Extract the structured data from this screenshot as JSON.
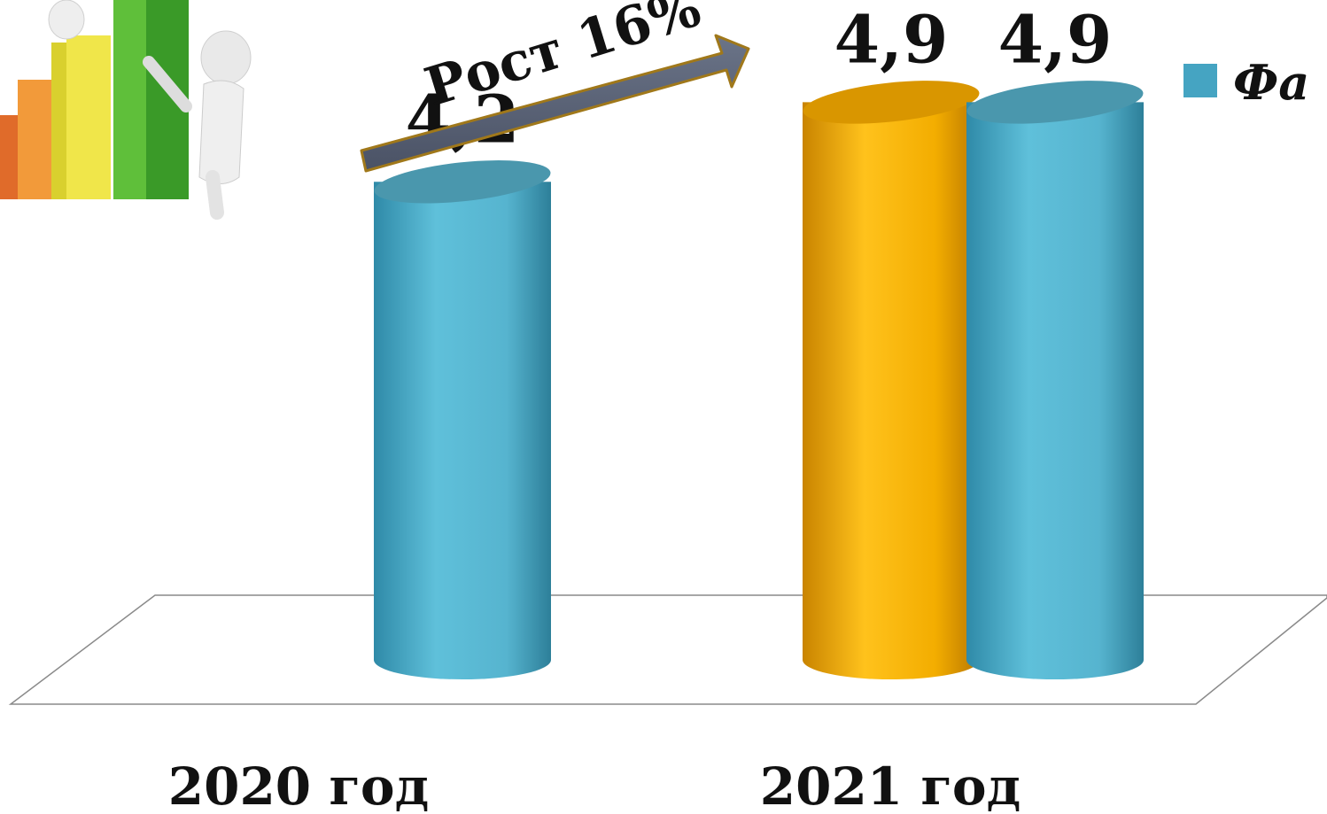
{
  "chart_data": {
    "type": "bar",
    "style": "3d-cylinder",
    "categories": [
      "2020 год",
      "2021 год"
    ],
    "series": [
      {
        "color": "#F2A900",
        "values": [
          null,
          4.9
        ]
      },
      {
        "name": "Фа",
        "color": "#45A4C2",
        "values": [
          4.2,
          4.9
        ]
      }
    ],
    "data_labels": [
      {
        "category": "2020 год",
        "text": "4,2"
      },
      {
        "category": "2021 год",
        "text": "4,9"
      },
      {
        "category": "2021 год",
        "text": "4,9"
      }
    ],
    "annotation": {
      "text": "Рост 16%",
      "arrow": true
    },
    "legend": {
      "placement": "top-right",
      "label": "Фа"
    },
    "grid": false,
    "ylim": [
      0,
      5.2
    ]
  },
  "decorations": {
    "clipart": "growth-chart-clipart"
  }
}
